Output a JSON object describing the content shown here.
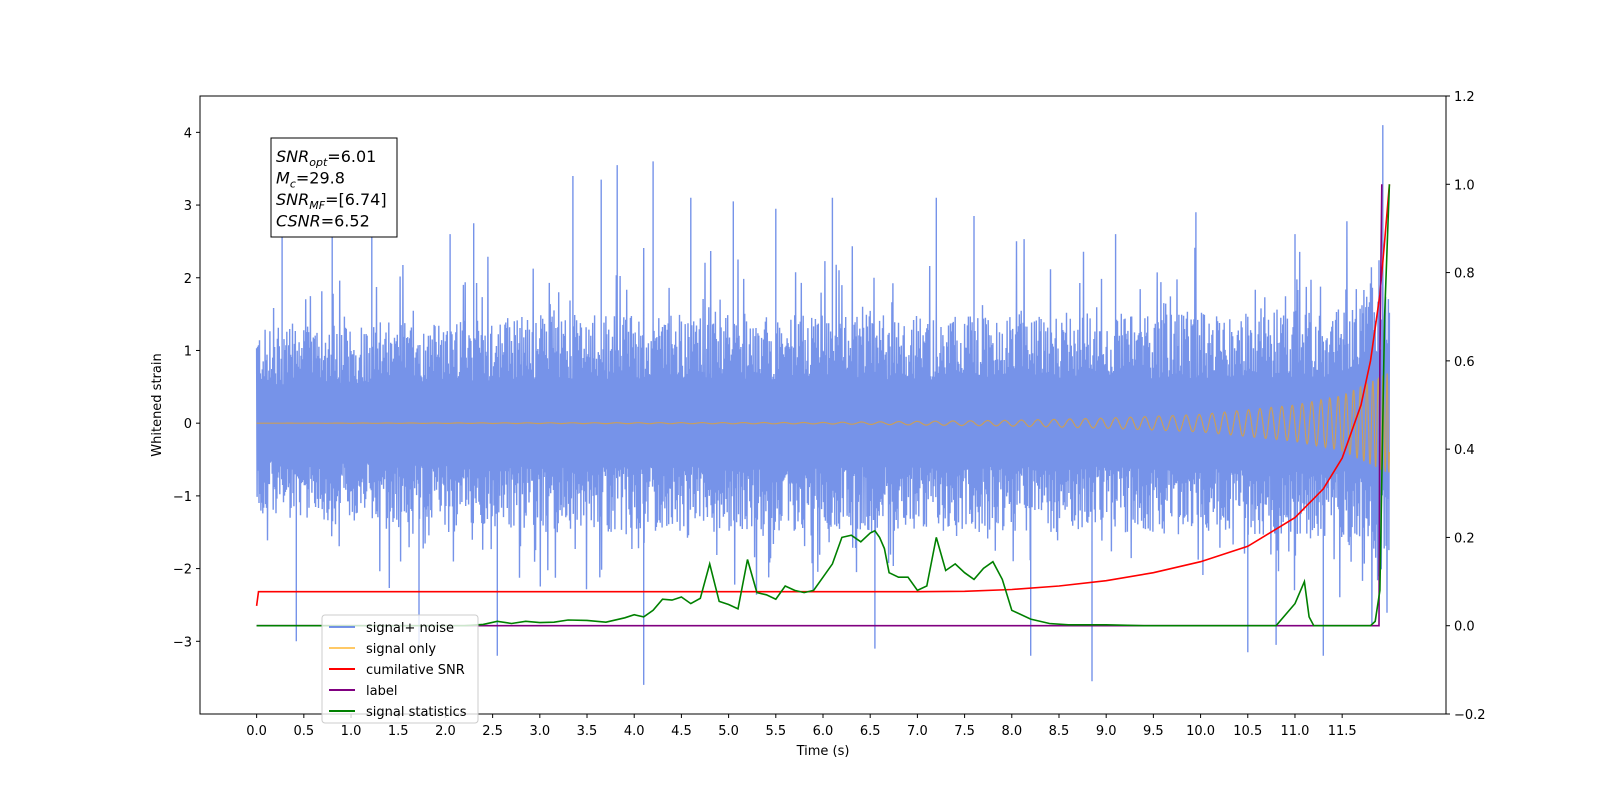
{
  "chart_data": {
    "type": "line",
    "xlabel": "Time (s)",
    "ylabel_left": "Whitened strain",
    "ylabel_right": "",
    "xlim": [
      -0.6,
      12.6
    ],
    "ylim_left": [
      -4.0,
      4.5
    ],
    "ylim_right": [
      -0.2,
      1.2
    ],
    "x_ticks": [
      0.0,
      0.5,
      1.0,
      1.5,
      2.0,
      2.5,
      3.0,
      3.5,
      4.0,
      4.5,
      5.0,
      5.5,
      6.0,
      6.5,
      7.0,
      7.5,
      8.0,
      8.5,
      9.0,
      9.5,
      10.0,
      10.5,
      11.0,
      11.5
    ],
    "x_tick_labels": [
      "0.0",
      "0.5",
      "1.0",
      "1.5",
      "2.0",
      "2.5",
      "3.0",
      "3.5",
      "4.0",
      "4.5",
      "5.0",
      "5.5",
      "6.0",
      "6.5",
      "7.0",
      "7.5",
      "8.0",
      "8.5",
      "9.0",
      "9.5",
      "10.0",
      "10.5",
      "11.0",
      "11.5"
    ],
    "y_ticks_left": [
      -3,
      -2,
      -1,
      0,
      1,
      2,
      3,
      4
    ],
    "y_tick_labels_left": [
      "−3",
      "−2",
      "−1",
      "0",
      "1",
      "2",
      "3",
      "4"
    ],
    "y_ticks_right": [
      -0.2,
      0.0,
      0.2,
      0.4,
      0.6,
      0.8,
      1.0,
      1.2
    ],
    "y_tick_labels_right": [
      "−0.2",
      "0.0",
      "0.2",
      "0.4",
      "0.6",
      "0.8",
      "1.0",
      "1.2"
    ],
    "grid": false,
    "legend_position": "lower-left",
    "annotation": {
      "lines": [
        {
          "base": "SNR",
          "sub": "opt",
          "rest": "=6.01"
        },
        {
          "base": "M",
          "sub": "c",
          "rest": "=29.8"
        },
        {
          "base": "SNR",
          "sub": "MF",
          "rest": "=[6.74]"
        },
        {
          "base": "CSNR",
          "sub": "",
          "rest": "=6.52"
        }
      ]
    },
    "series": [
      {
        "name": "signal+ noise",
        "axis": "left",
        "color": "#4169e1",
        "render": "noise-band",
        "x_range": [
          0.0,
          12.0
        ],
        "band": {
          "x": [
            0.0,
            3.0,
            6.0,
            9.0,
            11.5,
            11.9,
            12.0
          ],
          "upper": [
            1.3,
            1.5,
            1.5,
            1.5,
            1.6,
            2.4,
            1.8
          ],
          "lower": [
            -1.3,
            -1.5,
            -1.5,
            -1.5,
            -1.6,
            -2.2,
            -1.8
          ]
        },
        "spikes": [
          {
            "x": 0.27,
            "y": 2.6
          },
          {
            "x": 0.42,
            "y": -3.0
          },
          {
            "x": 0.8,
            "y": 2.75
          },
          {
            "x": 1.22,
            "y": 2.65
          },
          {
            "x": 1.72,
            "y": -3.1
          },
          {
            "x": 2.05,
            "y": 2.6
          },
          {
            "x": 2.3,
            "y": 2.75
          },
          {
            "x": 2.55,
            "y": -3.2
          },
          {
            "x": 3.35,
            "y": 3.4
          },
          {
            "x": 3.65,
            "y": 3.35
          },
          {
            "x": 3.82,
            "y": 3.55
          },
          {
            "x": 4.1,
            "y": -3.6
          },
          {
            "x": 4.2,
            "y": 3.6
          },
          {
            "x": 4.6,
            "y": 3.1
          },
          {
            "x": 5.05,
            "y": 3.05
          },
          {
            "x": 5.5,
            "y": 2.95
          },
          {
            "x": 6.1,
            "y": 3.1
          },
          {
            "x": 6.55,
            "y": -3.1
          },
          {
            "x": 7.2,
            "y": 3.1
          },
          {
            "x": 7.6,
            "y": 2.85
          },
          {
            "x": 8.2,
            "y": -3.2
          },
          {
            "x": 8.85,
            "y": -3.55
          },
          {
            "x": 9.1,
            "y": 2.6
          },
          {
            "x": 9.95,
            "y": 2.9
          },
          {
            "x": 10.5,
            "y": -3.15
          },
          {
            "x": 10.8,
            "y": -3.05
          },
          {
            "x": 11.0,
            "y": 2.6
          },
          {
            "x": 11.3,
            "y": -3.2
          },
          {
            "x": 11.55,
            "y": 2.4
          },
          {
            "x": 11.93,
            "y": 4.1
          }
        ]
      },
      {
        "name": "signal only",
        "axis": "left",
        "color": "#ffa500",
        "render": "chirp",
        "x_range": [
          0.0,
          12.0
        ],
        "envelope": {
          "x": [
            0.0,
            6.0,
            8.0,
            9.0,
            10.0,
            11.0,
            11.5,
            12.0
          ],
          "amp": [
            0.0,
            0.01,
            0.04,
            0.07,
            0.12,
            0.25,
            0.38,
            0.7
          ]
        }
      },
      {
        "name": "cumilative SNR",
        "axis": "right",
        "color": "#ff0000",
        "x": [
          0.0,
          0.02,
          1.0,
          3.0,
          5.0,
          7.0,
          7.5,
          8.0,
          8.5,
          9.0,
          9.5,
          10.0,
          10.5,
          11.0,
          11.3,
          11.5,
          11.7,
          11.8,
          11.9,
          11.95,
          12.0
        ],
        "y": [
          0.045,
          0.077,
          0.077,
          0.077,
          0.077,
          0.077,
          0.078,
          0.082,
          0.09,
          0.102,
          0.12,
          0.145,
          0.18,
          0.245,
          0.31,
          0.38,
          0.5,
          0.6,
          0.75,
          0.87,
          1.0
        ]
      },
      {
        "name": "label",
        "axis": "right",
        "color": "#800080",
        "x": [
          0.0,
          11.89,
          11.9,
          11.92
        ],
        "y": [
          0.0,
          0.0,
          0.6,
          1.0
        ]
      },
      {
        "name": "signal statistics",
        "axis": "right",
        "color": "#008000",
        "x": [
          0.0,
          2.2,
          2.4,
          2.55,
          2.7,
          2.85,
          3.0,
          3.15,
          3.3,
          3.5,
          3.7,
          3.9,
          4.0,
          4.1,
          4.2,
          4.3,
          4.4,
          4.5,
          4.6,
          4.7,
          4.8,
          4.9,
          5.0,
          5.1,
          5.2,
          5.3,
          5.4,
          5.5,
          5.6,
          5.7,
          5.8,
          5.9,
          6.0,
          6.1,
          6.2,
          6.3,
          6.4,
          6.5,
          6.55,
          6.6,
          6.65,
          6.7,
          6.8,
          6.9,
          7.0,
          7.1,
          7.2,
          7.3,
          7.4,
          7.5,
          7.6,
          7.7,
          7.8,
          7.9,
          8.0,
          8.2,
          8.4,
          8.6,
          9.0,
          9.4,
          10.0,
          10.8,
          11.0,
          11.1,
          11.15,
          11.2,
          11.3,
          11.8,
          11.85,
          11.9,
          11.95,
          12.0
        ],
        "y": [
          0.0,
          0.0,
          0.003,
          0.01,
          0.005,
          0.01,
          0.007,
          0.008,
          0.013,
          0.012,
          0.008,
          0.018,
          0.025,
          0.02,
          0.035,
          0.06,
          0.058,
          0.065,
          0.05,
          0.062,
          0.14,
          0.055,
          0.048,
          0.038,
          0.15,
          0.075,
          0.07,
          0.06,
          0.09,
          0.08,
          0.075,
          0.08,
          0.11,
          0.14,
          0.2,
          0.205,
          0.19,
          0.21,
          0.215,
          0.2,
          0.175,
          0.12,
          0.11,
          0.11,
          0.08,
          0.09,
          0.2,
          0.125,
          0.14,
          0.12,
          0.105,
          0.13,
          0.145,
          0.105,
          0.035,
          0.015,
          0.005,
          0.002,
          0.002,
          0.0,
          0.0,
          0.0,
          0.05,
          0.1,
          0.02,
          0.0,
          0.0,
          0.0,
          0.01,
          0.08,
          0.7,
          1.0
        ]
      }
    ]
  }
}
